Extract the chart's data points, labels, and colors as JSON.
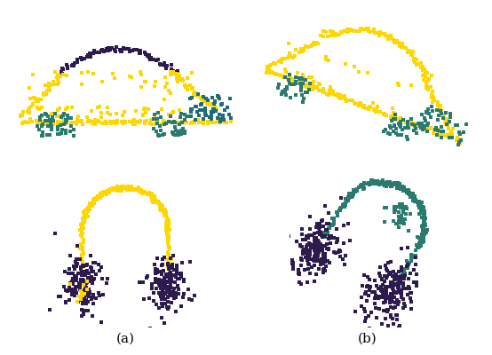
{
  "colors": {
    "yellow": "#FFD700",
    "purple": "#2D1B4E",
    "teal": "#2A7B6F",
    "blue_teal": "#1E6B7A",
    "bg": "#FFFFFF"
  },
  "label_a": "(a)",
  "label_b": "(b)",
  "seed": 7
}
